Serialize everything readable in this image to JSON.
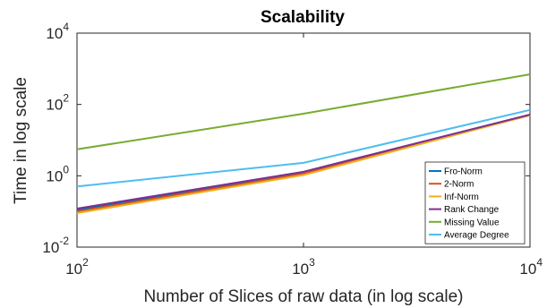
{
  "chart_data": {
    "type": "line",
    "title": "Scalability",
    "xlabel": "Number of Slices of raw data (in log scale)",
    "ylabel": "Time in log scale",
    "x_scale": "log",
    "y_scale": "log",
    "xlim": [
      100,
      10000
    ],
    "ylim": [
      0.01,
      10000
    ],
    "x_ticks": [
      {
        "base": "10",
        "exp": "2",
        "value": 100
      },
      {
        "base": "10",
        "exp": "3",
        "value": 1000
      },
      {
        "base": "10",
        "exp": "4",
        "value": 10000
      }
    ],
    "y_ticks": [
      {
        "base": "10",
        "exp": "-2",
        "value": 0.01
      },
      {
        "base": "10",
        "exp": "0",
        "value": 1
      },
      {
        "base": "10",
        "exp": "2",
        "value": 100
      },
      {
        "base": "10",
        "exp": "4",
        "value": 10000
      }
    ],
    "grid": false,
    "legend_position": "bottom-right",
    "x": [
      100,
      1000,
      10000
    ],
    "series": [
      {
        "name": "Fro-Norm",
        "color": "#0072BD",
        "values": [
          0.11,
          1.25,
          50
        ]
      },
      {
        "name": "2-Norm",
        "color": "#D95319",
        "values": [
          0.1,
          1.15,
          50
        ]
      },
      {
        "name": "Inf-Norm",
        "color": "#EDB120",
        "values": [
          0.09,
          1.05,
          50
        ]
      },
      {
        "name": "Rank Change",
        "color": "#7E2F8E",
        "values": [
          0.12,
          1.3,
          52
        ]
      },
      {
        "name": "Missing Value",
        "color": "#77AC30",
        "values": [
          5.5,
          55,
          700
        ]
      },
      {
        "name": "Average Degree",
        "color": "#4DBEEE",
        "values": [
          0.5,
          2.3,
          70
        ]
      }
    ]
  }
}
